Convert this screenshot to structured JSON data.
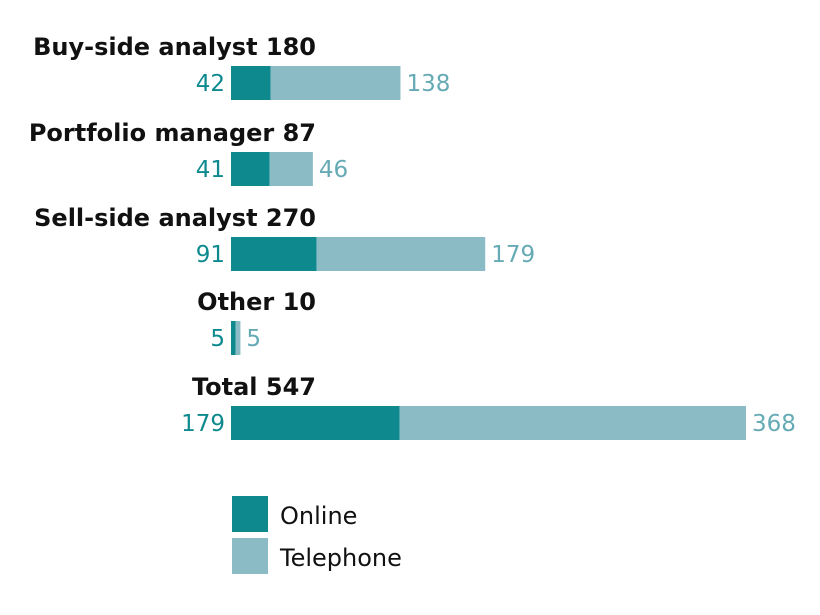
{
  "chart_data": {
    "type": "bar",
    "orientation": "horizontal",
    "stacked": true,
    "categories": [
      "Buy-side analyst 180",
      "Portfolio manager 87",
      "Sell-side analyst 270",
      "Other 10",
      "Total 547"
    ],
    "series": [
      {
        "name": "Online",
        "values": [
          42,
          41,
          91,
          5,
          179
        ],
        "color": "#0e8a8f"
      },
      {
        "name": "Telephone",
        "values": [
          138,
          46,
          179,
          5,
          368
        ],
        "color": "#8bbcc6"
      }
    ],
    "value_labels_online": [
      "42",
      "41",
      "91",
      "5",
      "179"
    ],
    "value_labels_telephone": [
      "138",
      "46",
      "179",
      "5",
      "368"
    ],
    "title": "",
    "xlabel": "",
    "ylabel": "",
    "xlim": [
      0,
      547
    ],
    "grid": false,
    "legend_position": "bottom"
  }
}
